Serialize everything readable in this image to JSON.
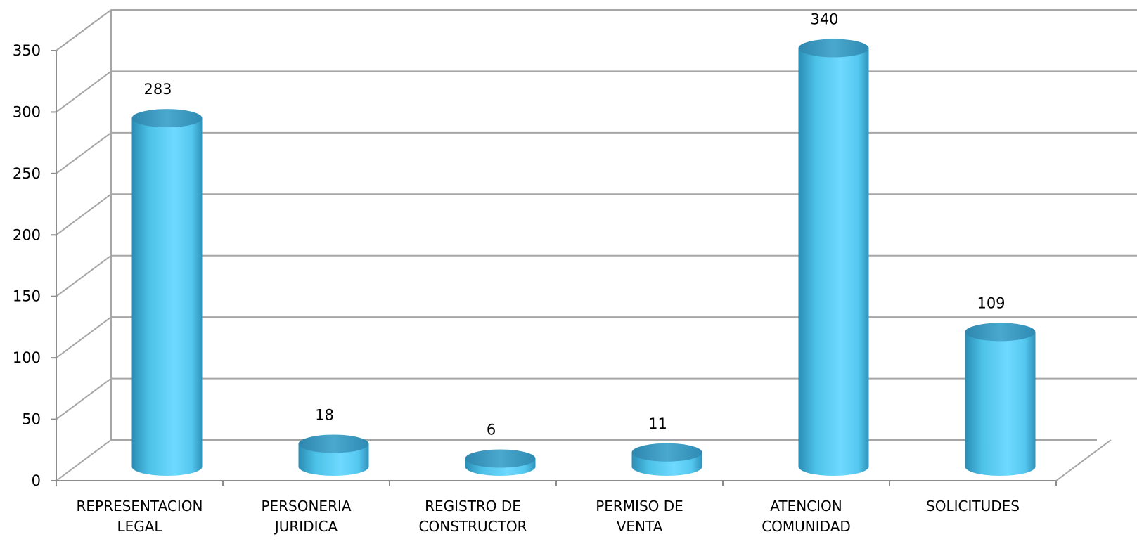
{
  "chart_data": {
    "type": "bar",
    "style": "3d-cylinder",
    "categories": [
      [
        "REPRESENTACION",
        "LEGAL"
      ],
      [
        "PERSONERIA",
        "JURIDICA"
      ],
      [
        "REGISTRO DE",
        "CONSTRUCTOR"
      ],
      [
        "PERMISO DE",
        "VENTA"
      ],
      [
        "ATENCION",
        "COMUNIDAD"
      ],
      [
        "SOLICITUDES"
      ]
    ],
    "values": [
      283,
      18,
      6,
      11,
      340,
      109
    ],
    "data_labels": [
      "283",
      "18",
      "6",
      "11",
      "340",
      "109"
    ],
    "yticks": [
      "0",
      "50",
      "100",
      "150",
      "200",
      "250",
      "300",
      "350"
    ],
    "ylim": [
      0,
      350
    ],
    "grid": true,
    "legend": "none",
    "colors": {
      "bar_body": "#4fc6ea",
      "bar_top": "#3a9cc4",
      "grid": "#a6a6a6",
      "axis": "#8c8c8c"
    }
  }
}
